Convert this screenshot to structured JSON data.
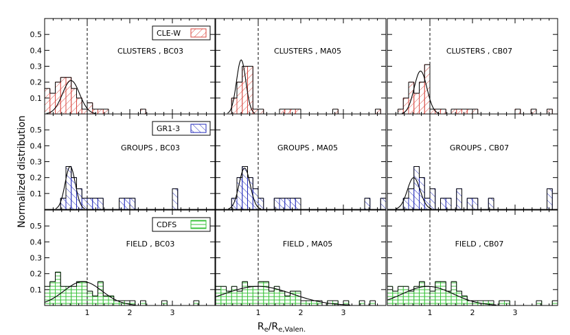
{
  "figure": {
    "xlabel_main": "R",
    "xlabel_sub1": "e",
    "xlabel_mid": "/R",
    "xlabel_sub2": "e,Valen.",
    "ylabel": "Normalized distribution"
  },
  "colors": {
    "clusters": "#d9473f",
    "groups": "#1f27b8",
    "field": "#39c23a",
    "axis": "#000000"
  },
  "chart_data": [
    {
      "type": "bar",
      "row": 0,
      "col": 0,
      "sample": "clusters",
      "model": "BC03",
      "title": "CLUSTERS , BC03",
      "legend": {
        "label": "CLE-W",
        "hatch": "diagonal"
      },
      "xlim": [
        0,
        4
      ],
      "ylim": [
        0,
        0.6
      ],
      "xticks": [
        1,
        2,
        3
      ],
      "yticks": [
        0.1,
        0.2,
        0.3,
        0.4,
        0.5
      ],
      "ref_line_x": 1.0,
      "bin_width": 0.125,
      "bins": [
        0.0,
        0.125,
        0.25,
        0.375,
        0.5,
        0.625,
        0.75,
        0.875,
        1.0,
        1.125,
        1.25,
        1.375,
        1.5,
        1.625,
        1.75,
        1.875,
        2.0,
        2.125,
        2.25,
        2.375,
        2.5,
        2.625,
        2.75,
        2.875,
        3.0,
        3.125,
        3.25,
        3.375,
        3.5,
        3.625,
        3.75,
        3.875
      ],
      "values": [
        0.16,
        0.13,
        0.2,
        0.23,
        0.23,
        0.16,
        0.1,
        0.03,
        0.07,
        0.03,
        0.03,
        0.03,
        0,
        0,
        0,
        0,
        0,
        0,
        0.03,
        0,
        0,
        0,
        0,
        0,
        0,
        0,
        0,
        0,
        0,
        0,
        0,
        0
      ],
      "fit": {
        "mu": 0.62,
        "sigma": 0.2,
        "amp": 0.21
      }
    },
    {
      "type": "bar",
      "row": 0,
      "col": 1,
      "sample": "clusters",
      "model": "MA05",
      "title": "CLUSTERS , MA05",
      "xlim": [
        0,
        4
      ],
      "ylim": [
        0,
        0.6
      ],
      "xticks": [
        1,
        2,
        3
      ],
      "yticks": [
        0.1,
        0.2,
        0.3,
        0.4,
        0.5
      ],
      "ref_line_x": 1.0,
      "bin_width": 0.125,
      "bins": [
        0.0,
        0.125,
        0.25,
        0.375,
        0.5,
        0.625,
        0.75,
        0.875,
        1.0,
        1.125,
        1.25,
        1.375,
        1.5,
        1.625,
        1.75,
        1.875,
        2.0,
        2.125,
        2.25,
        2.375,
        2.5,
        2.625,
        2.75,
        2.875,
        3.0,
        3.125,
        3.25,
        3.375,
        3.5,
        3.625,
        3.75,
        3.875
      ],
      "values": [
        0,
        0,
        0,
        0.1,
        0.2,
        0.3,
        0.3,
        0.03,
        0.03,
        0,
        0,
        0,
        0.03,
        0.03,
        0.03,
        0.03,
        0,
        0,
        0,
        0,
        0,
        0,
        0.03,
        0,
        0,
        0,
        0,
        0,
        0,
        0,
        0.03,
        0
      ],
      "fit": {
        "mu": 0.6,
        "sigma": 0.11,
        "amp": 0.34
      }
    },
    {
      "type": "bar",
      "row": 0,
      "col": 2,
      "sample": "clusters",
      "model": "CB07",
      "title": "CLUSTERS , CB07",
      "xlim": [
        0,
        4
      ],
      "ylim": [
        0,
        0.6
      ],
      "xticks": [
        1,
        2,
        3
      ],
      "yticks": [
        0.1,
        0.2,
        0.3,
        0.4,
        0.5
      ],
      "ref_line_x": 1.0,
      "bin_width": 0.125,
      "bins": [
        0.0,
        0.125,
        0.25,
        0.375,
        0.5,
        0.625,
        0.75,
        0.875,
        1.0,
        1.125,
        1.25,
        1.375,
        1.5,
        1.625,
        1.75,
        1.875,
        2.0,
        2.125,
        2.25,
        2.375,
        2.5,
        2.625,
        2.75,
        2.875,
        3.0,
        3.125,
        3.25,
        3.375,
        3.5,
        3.625,
        3.75,
        3.875
      ],
      "values": [
        0,
        0,
        0.03,
        0.1,
        0.2,
        0.13,
        0.2,
        0.31,
        0.03,
        0.03,
        0.03,
        0,
        0.03,
        0.03,
        0.03,
        0.03,
        0.03,
        0,
        0,
        0,
        0,
        0,
        0,
        0,
        0.03,
        0,
        0,
        0.03,
        0,
        0,
        0.03,
        0
      ],
      "fit": {
        "mu": 0.78,
        "sigma": 0.15,
        "amp": 0.27
      }
    },
    {
      "type": "bar",
      "row": 1,
      "col": 0,
      "sample": "groups",
      "model": "BC03",
      "title": "GROUPS , BC03",
      "legend": {
        "label": "GR1-3",
        "hatch": "diagonal"
      },
      "xlim": [
        0,
        4
      ],
      "ylim": [
        0,
        0.6
      ],
      "xticks": [
        1,
        2,
        3
      ],
      "yticks": [
        0.1,
        0.2,
        0.3,
        0.4,
        0.5
      ],
      "ref_line_x": 1.0,
      "bin_width": 0.125,
      "bins": [
        0.0,
        0.125,
        0.25,
        0.375,
        0.5,
        0.625,
        0.75,
        0.875,
        1.0,
        1.125,
        1.25,
        1.375,
        1.5,
        1.625,
        1.75,
        1.875,
        2.0,
        2.125,
        2.25,
        2.375,
        2.5,
        2.625,
        2.75,
        2.875,
        3.0,
        3.125,
        3.25,
        3.375,
        3.5,
        3.625,
        3.75,
        3.875
      ],
      "values": [
        0,
        0,
        0,
        0.07,
        0.27,
        0.2,
        0.13,
        0.07,
        0.07,
        0.07,
        0.07,
        0,
        0,
        0,
        0.07,
        0.07,
        0.07,
        0,
        0,
        0,
        0,
        0,
        0,
        0,
        0.13,
        0,
        0,
        0,
        0,
        0,
        0,
        0
      ],
      "fit": {
        "mu": 0.6,
        "sigma": 0.12,
        "amp": 0.27
      }
    },
    {
      "type": "bar",
      "row": 1,
      "col": 1,
      "sample": "groups",
      "model": "MA05",
      "title": "GROUPS , MA05",
      "xlim": [
        0,
        4
      ],
      "ylim": [
        0,
        0.6
      ],
      "xticks": [
        1,
        2,
        3
      ],
      "yticks": [
        0.1,
        0.2,
        0.3,
        0.4,
        0.5
      ],
      "ref_line_x": 1.0,
      "bin_width": 0.125,
      "bins": [
        0.0,
        0.125,
        0.25,
        0.375,
        0.5,
        0.625,
        0.75,
        0.875,
        1.0,
        1.125,
        1.25,
        1.375,
        1.5,
        1.625,
        1.75,
        1.875,
        2.0,
        2.125,
        2.25,
        2.375,
        2.5,
        2.625,
        2.75,
        2.875,
        3.0,
        3.125,
        3.25,
        3.375,
        3.5,
        3.625,
        3.75,
        3.875
      ],
      "values": [
        0,
        0,
        0,
        0.07,
        0.2,
        0.27,
        0.2,
        0.13,
        0.07,
        0,
        0,
        0.07,
        0.07,
        0.07,
        0.07,
        0.07,
        0,
        0,
        0,
        0,
        0,
        0,
        0,
        0,
        0,
        0,
        0,
        0,
        0.07,
        0,
        0,
        0.07
      ],
      "fit": {
        "mu": 0.68,
        "sigma": 0.13,
        "amp": 0.26
      }
    },
    {
      "type": "bar",
      "row": 1,
      "col": 2,
      "sample": "groups",
      "model": "CB07",
      "title": "GROUPS , CB07",
      "xlim": [
        0,
        4
      ],
      "ylim": [
        0,
        0.6
      ],
      "xticks": [
        1,
        2,
        3
      ],
      "yticks": [
        0.1,
        0.2,
        0.3,
        0.4,
        0.5
      ],
      "ref_line_x": 1.0,
      "bin_width": 0.125,
      "bins": [
        0.0,
        0.125,
        0.25,
        0.375,
        0.5,
        0.625,
        0.75,
        0.875,
        1.0,
        1.125,
        1.25,
        1.375,
        1.5,
        1.625,
        1.75,
        1.875,
        2.0,
        2.125,
        2.25,
        2.375,
        2.5,
        2.625,
        2.75,
        2.875,
        3.0,
        3.125,
        3.25,
        3.375,
        3.5,
        3.625,
        3.75,
        3.875
      ],
      "values": [
        0,
        0,
        0,
        0.07,
        0.13,
        0.27,
        0.2,
        0.07,
        0.13,
        0,
        0.07,
        0.07,
        0,
        0.13,
        0,
        0.07,
        0.07,
        0,
        0,
        0.07,
        0,
        0,
        0,
        0,
        0,
        0,
        0,
        0,
        0,
        0,
        0.13,
        0
      ],
      "fit": {
        "mu": 0.62,
        "sigma": 0.15,
        "amp": 0.2
      }
    },
    {
      "type": "bar",
      "row": 2,
      "col": 0,
      "sample": "field",
      "model": "BC03",
      "title": "FIELD , BC03",
      "legend": {
        "label": "CDFS",
        "hatch": "horizontal"
      },
      "xlim": [
        0,
        4
      ],
      "ylim": [
        0,
        0.6
      ],
      "xticks": [
        1,
        2,
        3
      ],
      "yticks": [
        0.1,
        0.2,
        0.3,
        0.4,
        0.5
      ],
      "ref_line_x": 1.0,
      "bin_width": 0.125,
      "bins": [
        0.0,
        0.125,
        0.25,
        0.375,
        0.5,
        0.625,
        0.75,
        0.875,
        1.0,
        1.125,
        1.25,
        1.375,
        1.5,
        1.625,
        1.75,
        1.875,
        2.0,
        2.125,
        2.25,
        2.375,
        2.5,
        2.625,
        2.75,
        2.875,
        3.0,
        3.125,
        3.25,
        3.375,
        3.5,
        3.625,
        3.75,
        3.875
      ],
      "values": [
        0.12,
        0.15,
        0.21,
        0.12,
        0.12,
        0.12,
        0.15,
        0.15,
        0.09,
        0.06,
        0.15,
        0.06,
        0.06,
        0.03,
        0.03,
        0.03,
        0.03,
        0,
        0.03,
        0,
        0,
        0,
        0.03,
        0,
        0,
        0,
        0,
        0,
        0.03,
        0,
        0,
        0
      ],
      "fit": {
        "mu": 0.9,
        "sigma": 0.45,
        "amp": 0.15
      }
    },
    {
      "type": "bar",
      "row": 2,
      "col": 1,
      "sample": "field",
      "model": "MA05",
      "title": "FIELD , MA05",
      "xlim": [
        0,
        4
      ],
      "ylim": [
        0,
        0.6
      ],
      "xticks": [
        1,
        2,
        3
      ],
      "yticks": [
        0.1,
        0.2,
        0.3,
        0.4,
        0.5
      ],
      "ref_line_x": 1.0,
      "bin_width": 0.125,
      "bins": [
        0.0,
        0.125,
        0.25,
        0.375,
        0.5,
        0.625,
        0.75,
        0.875,
        1.0,
        1.125,
        1.25,
        1.375,
        1.5,
        1.625,
        1.75,
        1.875,
        2.0,
        2.125,
        2.25,
        2.375,
        2.5,
        2.625,
        2.75,
        2.875,
        3.0,
        3.125,
        3.25,
        3.375,
        3.5,
        3.625,
        3.75,
        3.875
      ],
      "values": [
        0.12,
        0.12,
        0.09,
        0.12,
        0.09,
        0.15,
        0.12,
        0.12,
        0.15,
        0.15,
        0.09,
        0.12,
        0.09,
        0.06,
        0.09,
        0.09,
        0.03,
        0.03,
        0.03,
        0.03,
        0,
        0.03,
        0.03,
        0,
        0.03,
        0,
        0,
        0.03,
        0,
        0.03,
        0,
        0
      ],
      "fit": {
        "mu": 1.0,
        "sigma": 0.8,
        "amp": 0.12
      }
    },
    {
      "type": "bar",
      "row": 2,
      "col": 2,
      "sample": "field",
      "model": "CB07",
      "title": "FIELD , CB07",
      "xlim": [
        0,
        4
      ],
      "ylim": [
        0,
        0.6
      ],
      "xticks": [
        1,
        2,
        3
      ],
      "yticks": [
        0.1,
        0.2,
        0.3,
        0.4,
        0.5
      ],
      "ref_line_x": 1.0,
      "bin_width": 0.125,
      "bins": [
        0.0,
        0.125,
        0.25,
        0.375,
        0.5,
        0.625,
        0.75,
        0.875,
        1.0,
        1.125,
        1.25,
        1.375,
        1.5,
        1.625,
        1.75,
        1.875,
        2.0,
        2.125,
        2.25,
        2.375,
        2.5,
        2.625,
        2.75,
        2.875,
        3.0,
        3.125,
        3.25,
        3.375,
        3.5,
        3.625,
        3.75,
        3.875
      ],
      "values": [
        0.12,
        0.09,
        0.12,
        0.12,
        0.09,
        0.12,
        0.15,
        0.12,
        0.09,
        0.15,
        0.15,
        0.09,
        0.15,
        0.09,
        0.06,
        0.03,
        0.03,
        0.03,
        0.03,
        0.03,
        0,
        0.03,
        0.03,
        0,
        0,
        0,
        0,
        0,
        0.03,
        0,
        0,
        0.03
      ],
      "fit": {
        "mu": 0.95,
        "sigma": 0.6,
        "amp": 0.12
      }
    }
  ]
}
